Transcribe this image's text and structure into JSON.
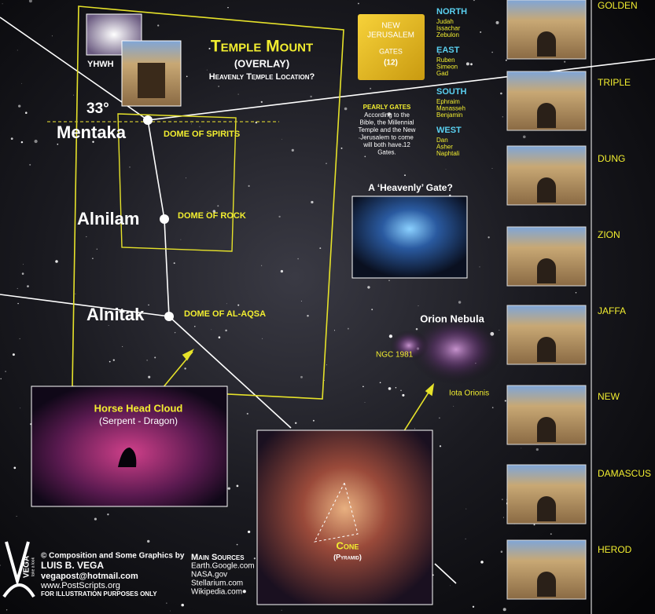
{
  "logo": {
    "name": "VEGA",
    "tagline": "take a look"
  },
  "overlay": {
    "title": "Temple Mount",
    "subtitle": "(OVERLAY)",
    "caption": "Heavenly Temple Location?",
    "angle": "33°",
    "deity": "YHWH"
  },
  "stars": [
    {
      "name": "Mentaka",
      "dome": "DOME OF SPIRITS"
    },
    {
      "name": "Alnilam",
      "dome": "DOME OF ROCK"
    },
    {
      "name": "Alnitak",
      "dome": "DOME OF AL-AQSA"
    }
  ],
  "new_jerusalem": {
    "title_lines": [
      "NEW",
      "JERUSALEM"
    ],
    "gates_label": "GATES",
    "gates_count": "(12)"
  },
  "tribes": [
    {
      "direction": "NORTH",
      "names": [
        "Judah",
        "Issachar",
        "Zebulon"
      ]
    },
    {
      "direction": "EAST",
      "names": [
        "Ruben",
        "Simeon",
        "Gad"
      ]
    },
    {
      "direction": "SOUTH",
      "names": [
        "Ephraim",
        "Manasseh",
        "Benjamin"
      ]
    },
    {
      "direction": "WEST",
      "names": [
        "Dan",
        "Asher",
        "Naphtali"
      ]
    }
  ],
  "pearly_gates": {
    "title": "PEARLY GATES",
    "lines": [
      "According to the",
      "Bible, the Millennial",
      "Temple and the New",
      "Jerusalem to come",
      "will both have 12",
      "Gates."
    ]
  },
  "heavenly_gate": "A ‘Heavenly’ Gate?",
  "nebula": {
    "title": "Orion Nebula",
    "labels": [
      "NGC 1981",
      "Iota Orionis"
    ]
  },
  "horse_head": {
    "title": "Horse Head Cloud",
    "subtitle": "(Serpent - Dragon)"
  },
  "cone": {
    "title": "Cone",
    "subtitle": "(Pyramid)"
  },
  "gates": [
    "GOLDEN",
    "TRIPLE",
    "DUNG",
    "ZION",
    "JAFFA",
    "NEW",
    "DAMASCUS",
    "HEROD"
  ],
  "credits": {
    "line1": "© Composition and Some Graphics by",
    "author": "LUIS B. VEGA",
    "email": "vegapost@hotmail.com",
    "site": "www.PostScripts.org",
    "note": "FOR ILLUSTRATION PURPOSES ONLY"
  },
  "sources": {
    "title": "Main Sources",
    "items": [
      "Earth.Google.com",
      "NASA.gov",
      "Stellarium.com",
      "Wikipedia.com"
    ]
  }
}
